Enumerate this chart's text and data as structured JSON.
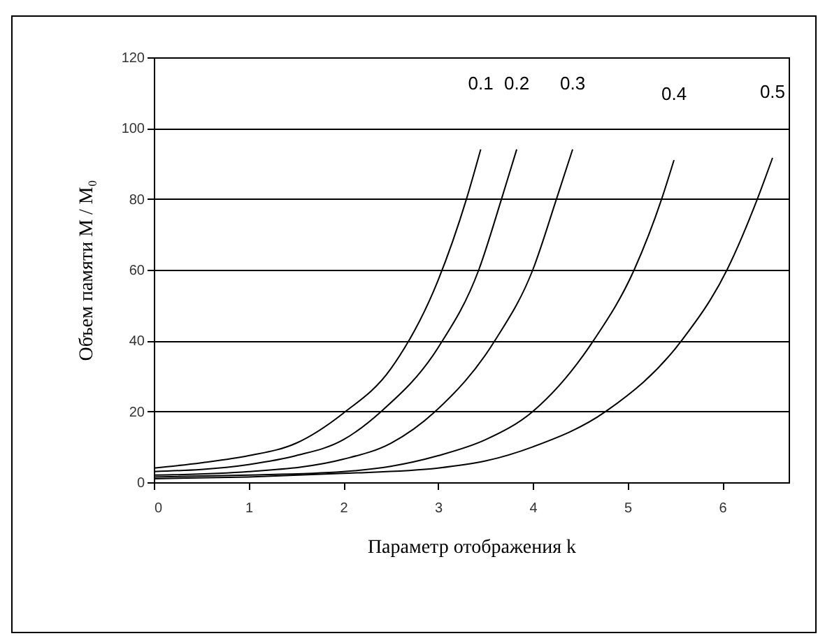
{
  "chart_data": {
    "type": "line",
    "xlabel": "Параметр отображения k",
    "ylabel": "Объем памяти M / M₀",
    "xlim": [
      0,
      6.7
    ],
    "xticks": [
      0,
      1,
      2,
      3,
      4,
      5,
      6
    ],
    "ylim": [
      0,
      120
    ],
    "yticks": [
      0,
      20,
      40,
      60,
      80,
      100,
      120
    ],
    "grid": "y",
    "legend": false,
    "marker": "none",
    "line_style": "solid",
    "series": [
      {
        "name": "0.1",
        "color": "#000000",
        "x": [
          0,
          0.5,
          1,
          1.5,
          2,
          2.5,
          3,
          3.3,
          3.45
        ],
        "values": [
          4,
          5.5,
          7.5,
          11,
          19.5,
          32,
          57,
          80,
          94
        ]
      },
      {
        "name": "0.2",
        "color": "#000000",
        "x": [
          0,
          1,
          1.5,
          2,
          2.4,
          3,
          3.43,
          3.67,
          3.83
        ],
        "values": [
          3,
          5,
          7.5,
          12,
          20,
          38,
          60,
          80,
          94
        ]
      },
      {
        "name": "0.3",
        "color": "#000000",
        "x": [
          0,
          1,
          2,
          2.5,
          2.97,
          3.6,
          4,
          4.25,
          4.42
        ],
        "values": [
          2,
          3,
          6.5,
          11,
          20,
          40,
          60,
          80,
          94
        ]
      },
      {
        "name": "0.4",
        "color": "#000000",
        "x": [
          0,
          1,
          2,
          2.5,
          3,
          3.5,
          4,
          4.64,
          5.07,
          5.36,
          5.49
        ],
        "values": [
          1.5,
          2,
          3,
          4.5,
          7.5,
          12,
          20,
          40,
          60,
          80,
          91
        ]
      },
      {
        "name": "0.5",
        "color": "#000000",
        "x": [
          0,
          1,
          2,
          3,
          3.5,
          4,
          4.77,
          5.57,
          6.05,
          6.37,
          6.53
        ],
        "values": [
          1,
          1.5,
          2.5,
          4,
          6,
          10,
          20,
          40,
          60,
          80,
          91.6
        ]
      }
    ]
  }
}
